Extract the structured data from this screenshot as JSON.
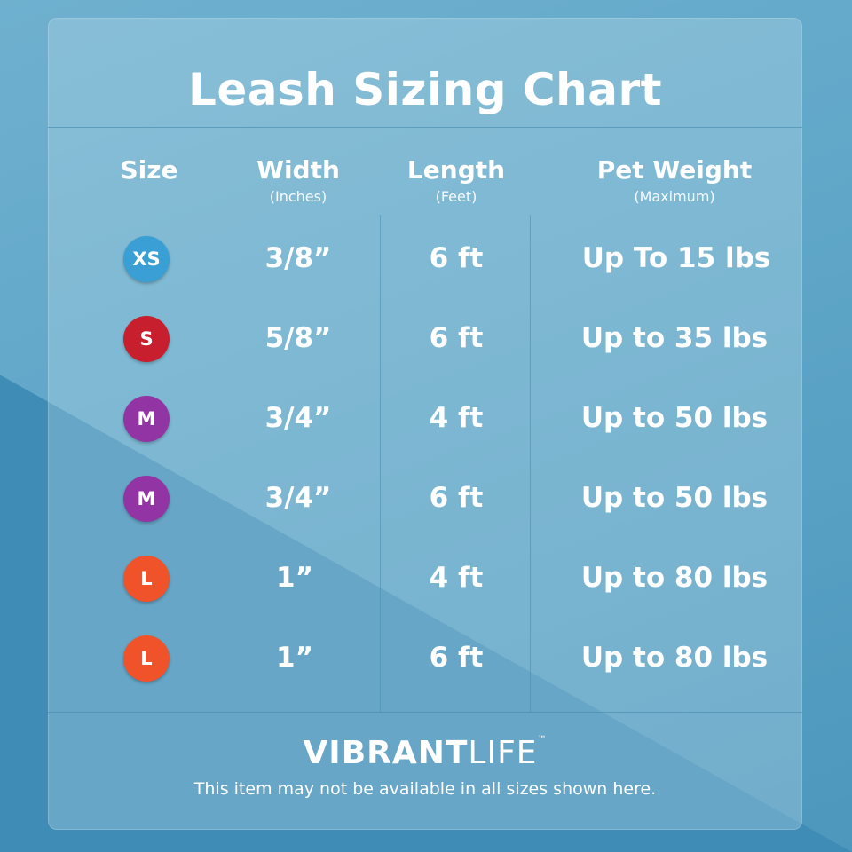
{
  "title": "Leash Sizing Chart",
  "columns": [
    {
      "label": "Size",
      "sub": ""
    },
    {
      "label": "Width",
      "sub": "(Inches)"
    },
    {
      "label": "Length",
      "sub": "(Feet)"
    },
    {
      "label": "Pet Weight",
      "sub": "(Maximum)"
    }
  ],
  "rows": [
    {
      "size": "XS",
      "color": "#3a9fd4",
      "width": "3/8”",
      "length": "6 ft",
      "weight": "Up To 15 lbs"
    },
    {
      "size": "S",
      "color": "#c81f2e",
      "width": "5/8”",
      "length": "6 ft",
      "weight": "Up to 35 lbs"
    },
    {
      "size": "M",
      "color": "#9334a4",
      "width": "3/4”",
      "length": "4 ft",
      "weight": "Up to 50 lbs"
    },
    {
      "size": "M",
      "color": "#9334a4",
      "width": "3/4”",
      "length": "6 ft",
      "weight": "Up to 50 lbs"
    },
    {
      "size": "L",
      "color": "#f0532a",
      "width": "1”",
      "length": "4 ft",
      "weight": "Up to 80 lbs"
    },
    {
      "size": "L",
      "color": "#f0532a",
      "width": "1”",
      "length": "6 ft",
      "weight": "Up to 80 lbs"
    }
  ],
  "brand": {
    "bold": "VIBRANT",
    "light": "LIFE",
    "mark": "™"
  },
  "disclaimer": "This item may not be available in all sizes shown here."
}
